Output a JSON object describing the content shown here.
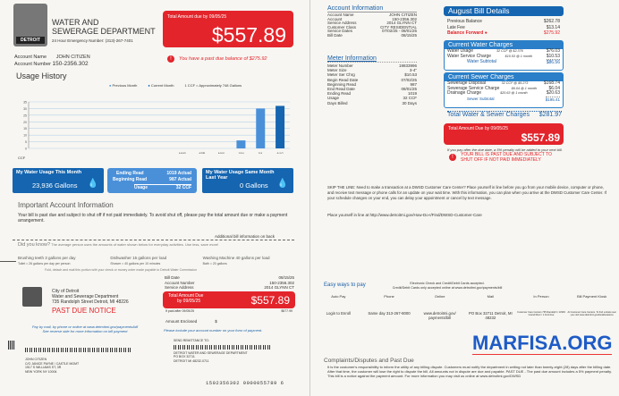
{
  "header": {
    "dept_line1": "WATER AND",
    "dept_line2": "SEWERAGE DEPARTMENT",
    "emergency": "24 Hour Emergency Number: (313)-267-7401",
    "logo_text": "DETROIT",
    "account_name_label": "Account Name",
    "account_name": "JOHN CITIZEN",
    "account_number_label": "Account Number",
    "account_number": "150-2356.302"
  },
  "due_box": {
    "label": "Total Amount due by 09/05/25",
    "amount": "$557.89",
    "past_due_msg": "You have a past due balance of $275.92"
  },
  "usage": {
    "title": "Usage History",
    "legend_prev": "Previous Month",
    "legend_cur": "Current Month",
    "ccf_note": "1 CCF = Approximately 748 Gallons",
    "unit": "CCF"
  },
  "chart_data": {
    "type": "bar",
    "categories": [
      "MAR 2025",
      "APR 2025",
      "MAY 2025",
      "JUN 2025",
      "JUL 2025",
      "AUG 2025"
    ],
    "series": [
      {
        "name": "Previous Month",
        "values": [
          0,
          0,
          0,
          6,
          30,
          null
        ],
        "color": "#4a90d9"
      },
      {
        "name": "Current Month",
        "values": [
          null,
          null,
          null,
          null,
          null,
          32
        ],
        "color": "#1565b0"
      }
    ],
    "ylim": [
      0,
      35
    ],
    "yticks": [
      0,
      5,
      10,
      15,
      20,
      25,
      30,
      35
    ],
    "ylabel": "CCF",
    "grid": true,
    "legend": "top"
  },
  "tiles": {
    "this_month_label": "My Water Usage This Month",
    "this_month_value": "23,936 Gallons",
    "ending_read_label": "Ending Read",
    "ending_read": "1019 Actual",
    "beginning_read_label": "Beginning Read",
    "beginning_read": "987 Actual",
    "usage_label": "Usage",
    "usage": "32 CCF",
    "last_year_label": "My Water Usage Same Month Last Year",
    "last_year_value": "0 Gallons"
  },
  "important": {
    "title": "Important Account Information",
    "text": "Your bill is past due and subject to shut off if not paid immediately. To avoid shut off, please pay the total amount due or make a payment arrangement.",
    "back_note": "Additional bill information on back"
  },
  "did_you_know": {
    "lead": "Did you know?",
    "intro": "The average person uses the amounts of water shown below for everyday activities. Use less, save more!",
    "items": [
      "Brushing teeth 3 gallons per day",
      "Dishwasher 15 gallons per load",
      "Washing Machine 40 gallons per load",
      "Toilet = 26 gallons per day per person",
      "Shower = 40 gallons per 10 minutes",
      "Bath = 20 gallons"
    ]
  },
  "stub": {
    "detach": "Fold, detach and mail this portion with your check or money order made payable to Detroit Water Commission",
    "city": "City of Detroit",
    "dept": "Water and Sewerage Department",
    "address": "735 Randolph Street Detroit, MI 48226",
    "notice": "PAST DUE NOTICE",
    "bill_date_label": "Bill Date",
    "bill_date": "08/15/25",
    "acct_label": "Account Number",
    "acct": "150-2356.302",
    "svc_label": "Service Address",
    "svc": "2014 GLYNN CT",
    "total_label": "Total Amount Due",
    "total_by": "by 09/05/25",
    "total": "$557.89",
    "after_label": "If paid after 09/05/25",
    "after": "$577.99",
    "enclosed_label": "Amount Enclosed",
    "enclosed": "$",
    "pay_note": "Pay by mail, by phone or online at www.detroitmi.gov/payments/bill",
    "see_reverse": "See reverse side for more information on bill payment",
    "include_note": "Please include your account number on your form of payment.",
    "remit_label": "SEND REMITTANCE TO:",
    "remit_addr1": "DETROIT WATER AND SEWERAGE DEPARTMENT",
    "remit_addr2": "PO BOX 32711",
    "remit_addr3": "DETROIT MI 48232-0711",
    "addr1": "JOHN CITIZEN",
    "addr2": "C/O JANICE PAYNE / CASTLE MGMT",
    "addr3": "1517 S WILLIAMS ST, 3R",
    "addr4": "NEW YORK NY 10004",
    "scanline": "1502356302 0000055789 6"
  },
  "account_info": {
    "title": "Account Information",
    "rows": [
      [
        "Account Name",
        "JOHN CITIZEN"
      ],
      [
        "Account",
        "150-2356.302"
      ],
      [
        "Service Address",
        "2014 GLYNN CT"
      ],
      [
        "Customer Class",
        "CITY RESIDENTIAL"
      ],
      [
        "Service Dates",
        "07/02/25 - 08/01/25"
      ],
      [
        "Bill Date",
        "08/15/25"
      ]
    ]
  },
  "meter_info": {
    "title": "Meter Information",
    "rows": [
      [
        "Meter Number",
        "19833996"
      ],
      [
        "Meter Size",
        "3-4\""
      ],
      [
        "Meter Ser Chrg",
        "$10.53"
      ],
      [
        "Begin Read Date",
        "07/02/25"
      ],
      [
        "Beginning Read",
        "987"
      ],
      [
        "End Read Date",
        "08/01/25"
      ],
      [
        "Ending Read",
        "1019"
      ],
      [
        "Usage",
        "32 CCF"
      ],
      [
        "Days Billed",
        "30 Days"
      ]
    ]
  },
  "bill_details": {
    "title": "August Bill Details",
    "previous_label": "Previous Balance",
    "previous": "$262.78",
    "late_label": "Late Fee",
    "late": "$13.14",
    "forward_label": "Balance Forward",
    "forward": "$275.92",
    "water_title": "Current Water Charges",
    "water": [
      [
        "Water Usage",
        "32 CCF @ $2.376",
        "$76.03"
      ],
      [
        "Water Service Charge",
        "$10.53 @ 1 month",
        "$10.53"
      ]
    ],
    "water_sub_label": "Water Subtotal",
    "water_sub": "$86.56",
    "sewer_title": "Current Sewer Charges",
    "sewer": [
      [
        "Sewerage Disposal",
        "32 CCF @ $5.273",
        "$168.74"
      ],
      [
        "Sewerage Service Charge",
        "$6.04 @ 1 month",
        "$6.04"
      ],
      [
        "Drainage Charge",
        "$20.63 @ 1 month",
        "$20.63"
      ]
    ],
    "sewer_sub_label": "Sewer Subtotal",
    "sewer_sub": "$195.41",
    "total_ws_label": "Total Water & Sewer Charges",
    "total_ws": "$281.97",
    "due_label": "Total Amount Due by 09/05/25",
    "due": "$557.89",
    "penalty_note": "If you pay after the due date, a 5% penalty will be added to your next bill.",
    "shutoff": "YOUR BILL IS PAST DUE AND SUBJECT TO SHUT OFF IF NOT PAID IMMEDIATELY"
  },
  "skip": {
    "text1": "SKIP THE LINE: Need to make a transaction at a DWSD Customer Care Center? Place yourself in line before you go from your mobile device, computer or phone, and receive text message or phone calls for an update on your wait time. With this information, you can plan when you arrive at the DWSD Customer Care Center. If your schedule changes on your end, you can delay your appointment or cancel by text message.",
    "text2": "Place yourself in line at http://www.detroitmi.gov/How-Do-I/Find/DWSD-Customer-Care"
  },
  "pay": {
    "title": "Easy ways to pay",
    "note1": "Electronic Check and Credit/Debit Cards accepted.",
    "note2": "Credit/Debit Cards only accepted online at www.detroitmi.gov/payments/bill",
    "methods": [
      {
        "name": "Auto Pay",
        "detail": "Login to Enroll"
      },
      {
        "name": "Phone",
        "detail": "Same day 313-267-8000"
      },
      {
        "name": "Online",
        "detail": "www.detroitmi.gov/ payments/bill"
      },
      {
        "name": "Mail",
        "detail": "PO Box 32711 Detroit, MI 48232"
      },
      {
        "name": "In Person",
        "detail": "Customer Care Centers 735 Randolph / 13303 Grand River / 1 Ford Ave"
      },
      {
        "name": "Bill Payment Kiosk",
        "detail": "At Customer Care Centers. To find a kiosk near you visit www.detroitmi.gov/kiosklocations"
      }
    ]
  },
  "complaints": {
    "title": "Complaints/Disputes and Past Due",
    "text": "It is the customer's responsibility to inform the utility of any billing dispute. Customers must notify the department in writing not later than twenty-eight (28) days after the billing date. After that time, the customer will lose the right to dispute the bill. All amounts not in dispute are due and payable. PAST DUE - The past due amount includes a 5% payment penalty. This bill is a notice against the payment amount. For more information you may visit us online at www.detroitmi.gov/DWSD"
  },
  "watermark": "MARFISA.ORG"
}
